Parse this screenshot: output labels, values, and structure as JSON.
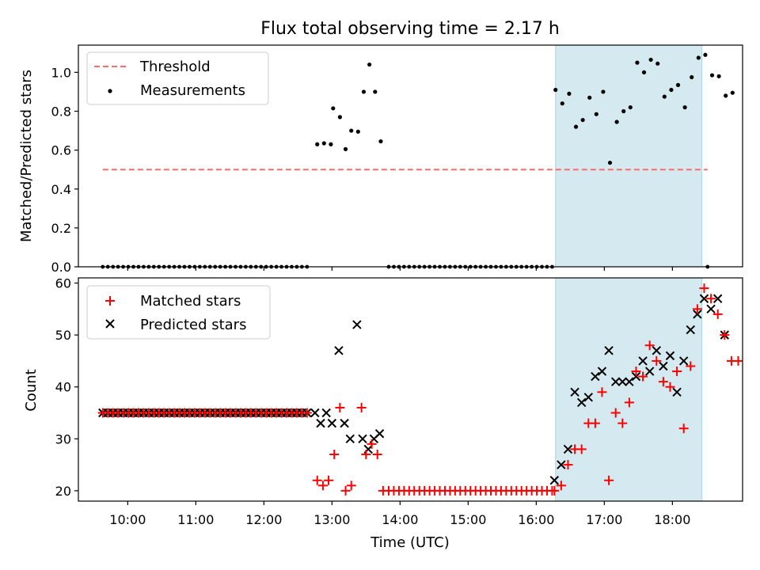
{
  "title": "Flux total observing time = 2.17 h",
  "colors": {
    "threshold": "#ff6b6b",
    "measurement": "#000000",
    "matched": "#ff0000",
    "predicted": "#000000",
    "shade": "#d4eaf0",
    "shade_edge": "#a8d5e0"
  },
  "chart_data": [
    {
      "type": "scatter",
      "ylabel": "Matched/Predicted stars",
      "xlabel": "",
      "ylim": [
        0.0,
        1.14
      ],
      "yticks": [
        "0.0",
        "0.2",
        "0.4",
        "0.6",
        "0.8",
        "1.0"
      ],
      "legend": {
        "placement": "top-left",
        "entries": [
          "Threshold",
          "Measurements"
        ]
      },
      "threshold": {
        "name": "Threshold",
        "y": 0.5,
        "x_range": [
          "09:38",
          "18:31"
        ]
      },
      "shaded_span": [
        "16:17",
        "18:26"
      ],
      "measurements": [
        [
          "12:47",
          0.63
        ],
        [
          "12:53",
          0.635
        ],
        [
          "12:59",
          0.63
        ],
        [
          "13:01",
          0.815
        ],
        [
          "13:07",
          0.77
        ],
        [
          "13:12",
          0.605
        ],
        [
          "13:17",
          0.7
        ],
        [
          "13:23",
          0.695
        ],
        [
          "13:28",
          0.9
        ],
        [
          "13:33",
          1.04
        ],
        [
          "13:38",
          0.9
        ],
        [
          "13:43",
          0.645
        ],
        [
          "16:17",
          0.91
        ],
        [
          "16:23",
          0.84
        ],
        [
          "16:29",
          0.89
        ],
        [
          "16:35",
          0.72
        ],
        [
          "16:41",
          0.755
        ],
        [
          "16:47",
          0.87
        ],
        [
          "16:53",
          0.785
        ],
        [
          "16:59",
          0.9
        ],
        [
          "17:05",
          0.535
        ],
        [
          "17:11",
          0.745
        ],
        [
          "17:17",
          0.8
        ],
        [
          "17:23",
          0.82
        ],
        [
          "17:29",
          1.05
        ],
        [
          "17:35",
          1.0
        ],
        [
          "17:41",
          1.065
        ],
        [
          "17:47",
          1.045
        ],
        [
          "17:53",
          0.875
        ],
        [
          "17:59",
          0.91
        ],
        [
          "18:05",
          0.935
        ],
        [
          "18:11",
          0.82
        ],
        [
          "18:17",
          0.975
        ],
        [
          "18:23",
          1.075
        ],
        [
          "18:29",
          1.09
        ],
        [
          "18:35",
          0.985
        ],
        [
          "18:41",
          0.98
        ],
        [
          "18:47",
          0.88
        ],
        [
          "18:53",
          0.895
        ]
      ],
      "zero_runs": [
        {
          "start": "09:38",
          "end": "12:42",
          "step_min": 4.5
        },
        {
          "start": "13:50",
          "end": "16:14",
          "step_min": 4.5
        }
      ],
      "zero_points": [
        "18:31"
      ]
    },
    {
      "type": "scatter",
      "ylabel": "Count",
      "xlabel": "Time (UTC)",
      "ylim": [
        18,
        61
      ],
      "yticks": [
        "20",
        "30",
        "40",
        "50",
        "60"
      ],
      "xticks": [
        "10:00",
        "11:00",
        "12:00",
        "13:00",
        "14:00",
        "15:00",
        "16:00",
        "17:00",
        "18:00"
      ],
      "legend": {
        "placement": "top-left",
        "entries": [
          "Matched stars",
          "Predicted stars"
        ]
      },
      "shaded_span": [
        "16:17",
        "18:26"
      ],
      "constant_runs": [
        {
          "series": "both",
          "value": 35,
          "start": "09:38",
          "end": "12:42",
          "step_min": 4.5
        },
        {
          "series": "matched",
          "value": 20,
          "start": "13:50",
          "end": "16:14",
          "step_min": 4.5
        }
      ],
      "matched": [
        [
          "12:47",
          22
        ],
        [
          "12:52",
          21
        ],
        [
          "12:57",
          22
        ],
        [
          "13:02",
          27
        ],
        [
          "13:07",
          36
        ],
        [
          "13:12",
          20
        ],
        [
          "13:17",
          21
        ],
        [
          "13:26",
          36
        ],
        [
          "13:30",
          27
        ],
        [
          "13:35",
          29
        ],
        [
          "13:40",
          27
        ],
        [
          "13:45",
          20
        ],
        [
          "16:16",
          20
        ],
        [
          "16:22",
          21
        ],
        [
          "16:28",
          25
        ],
        [
          "16:34",
          28
        ],
        [
          "16:40",
          28
        ],
        [
          "16:46",
          33
        ],
        [
          "16:52",
          33
        ],
        [
          "16:58",
          39
        ],
        [
          "17:04",
          22
        ],
        [
          "17:10",
          35
        ],
        [
          "17:16",
          33
        ],
        [
          "17:22",
          37
        ],
        [
          "17:28",
          43
        ],
        [
          "17:34",
          42
        ],
        [
          "17:40",
          48
        ],
        [
          "17:46",
          45
        ],
        [
          "17:52",
          41
        ],
        [
          "17:58",
          40
        ],
        [
          "18:04",
          43
        ],
        [
          "18:10",
          32
        ],
        [
          "18:16",
          44
        ],
        [
          "18:22",
          55
        ],
        [
          "18:28",
          59
        ],
        [
          "18:34",
          57
        ],
        [
          "18:40",
          54
        ],
        [
          "18:46",
          50
        ],
        [
          "18:52",
          45
        ],
        [
          "18:58",
          45
        ]
      ],
      "predicted": [
        [
          "12:45",
          35
        ],
        [
          "12:50",
          33
        ],
        [
          "12:55",
          35
        ],
        [
          "13:00",
          33
        ],
        [
          "13:06",
          47
        ],
        [
          "13:11",
          33
        ],
        [
          "13:16",
          30
        ],
        [
          "13:22",
          52
        ],
        [
          "13:27",
          30
        ],
        [
          "13:32",
          28
        ],
        [
          "13:37",
          30
        ],
        [
          "13:42",
          31
        ],
        [
          "16:16",
          22
        ],
        [
          "16:22",
          25
        ],
        [
          "16:28",
          28
        ],
        [
          "16:34",
          39
        ],
        [
          "16:40",
          37
        ],
        [
          "16:46",
          38
        ],
        [
          "16:52",
          42
        ],
        [
          "16:58",
          43
        ],
        [
          "17:04",
          47
        ],
        [
          "17:10",
          41
        ],
        [
          "17:16",
          41
        ],
        [
          "17:22",
          41
        ],
        [
          "17:28",
          42
        ],
        [
          "17:34",
          45
        ],
        [
          "17:40",
          43
        ],
        [
          "17:46",
          47
        ],
        [
          "17:52",
          44
        ],
        [
          "17:58",
          46
        ],
        [
          "18:04",
          39
        ],
        [
          "18:10",
          45
        ],
        [
          "18:16",
          51
        ],
        [
          "18:22",
          54
        ],
        [
          "18:28",
          57
        ],
        [
          "18:34",
          55
        ],
        [
          "18:40",
          57
        ],
        [
          "18:46",
          50
        ]
      ]
    }
  ]
}
